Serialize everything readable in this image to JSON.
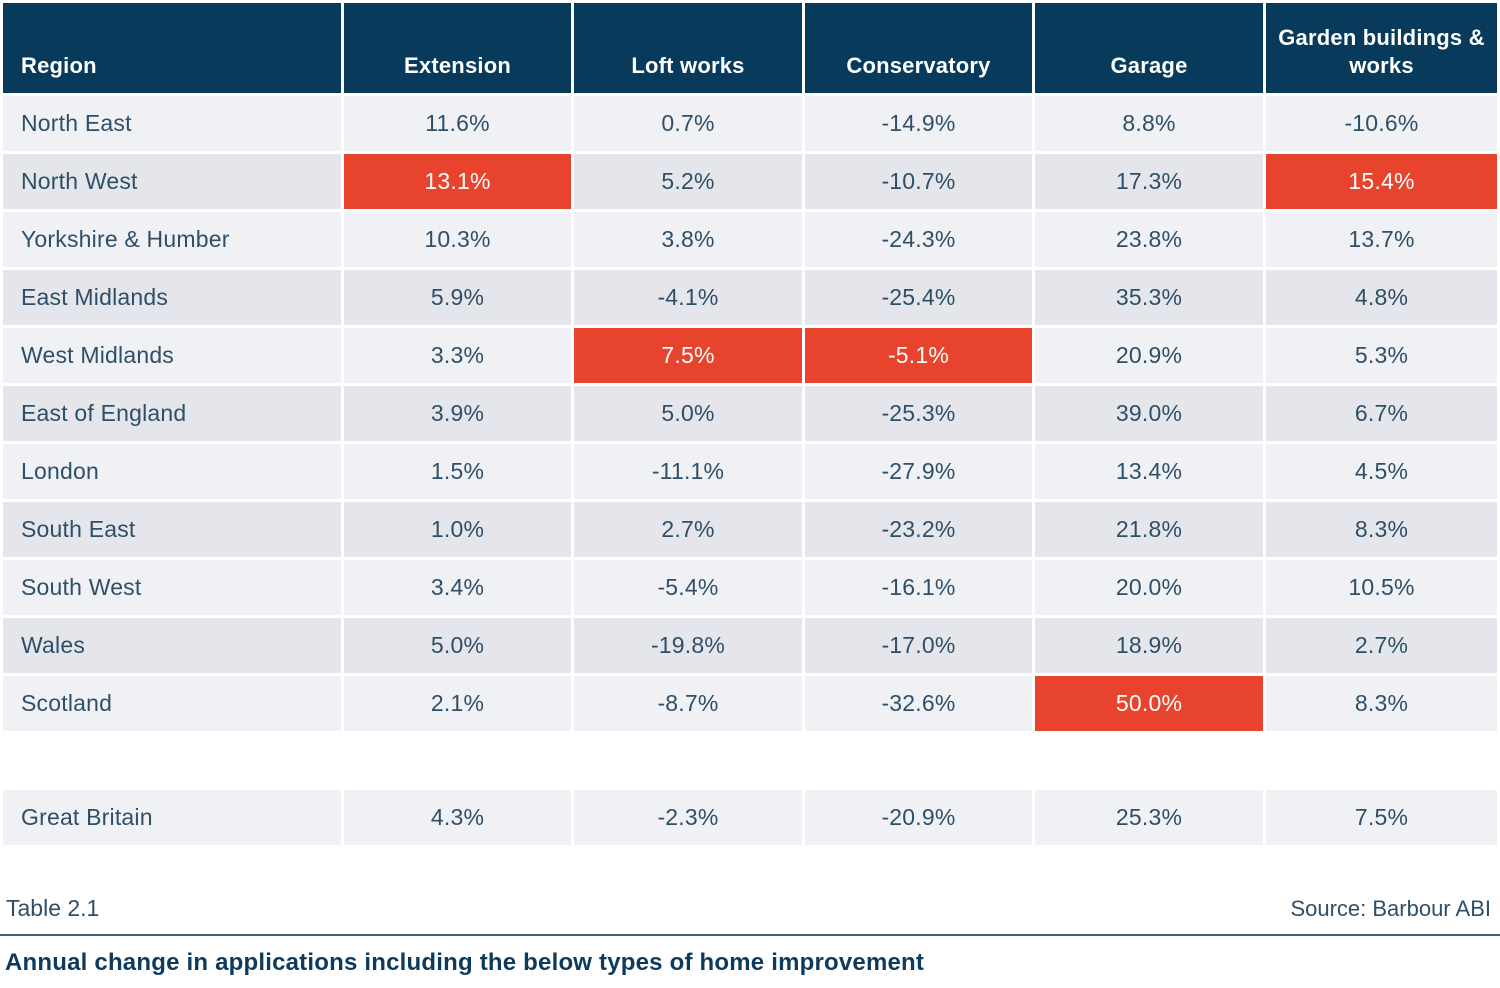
{
  "chart_data": {
    "type": "table",
    "title": "Annual change in applications including the below types of home improvement",
    "table_label": "Table 2.1",
    "source": "Source: Barbour ABI",
    "columns": [
      "Region",
      "Extension",
      "Loft works",
      "Conservatory",
      "Garage",
      "Garden buildings & works"
    ],
    "rows": [
      {
        "region": "North East",
        "values": [
          "11.6%",
          "0.7%",
          "-14.9%",
          "8.8%",
          "-10.6%"
        ],
        "highlight": []
      },
      {
        "region": "North West",
        "values": [
          "13.1%",
          "5.2%",
          "-10.7%",
          "17.3%",
          "15.4%"
        ],
        "highlight": [
          0,
          4
        ]
      },
      {
        "region": "Yorkshire & Humber",
        "values": [
          "10.3%",
          "3.8%",
          "-24.3%",
          "23.8%",
          "13.7%"
        ],
        "highlight": []
      },
      {
        "region": "East Midlands",
        "values": [
          "5.9%",
          "-4.1%",
          "-25.4%",
          "35.3%",
          "4.8%"
        ],
        "highlight": []
      },
      {
        "region": "West Midlands",
        "values": [
          "3.3%",
          "7.5%",
          "-5.1%",
          "20.9%",
          "5.3%"
        ],
        "highlight": [
          1,
          2
        ]
      },
      {
        "region": "East of England",
        "values": [
          "3.9%",
          "5.0%",
          "-25.3%",
          "39.0%",
          "6.7%"
        ],
        "highlight": []
      },
      {
        "region": "London",
        "values": [
          "1.5%",
          "-11.1%",
          "-27.9%",
          "13.4%",
          "4.5%"
        ],
        "highlight": []
      },
      {
        "region": "South East",
        "values": [
          "1.0%",
          "2.7%",
          "-23.2%",
          "21.8%",
          "8.3%"
        ],
        "highlight": []
      },
      {
        "region": "South West",
        "values": [
          "3.4%",
          "-5.4%",
          "-16.1%",
          "20.0%",
          "10.5%"
        ],
        "highlight": []
      },
      {
        "region": "Wales",
        "values": [
          "5.0%",
          "-19.8%",
          "-17.0%",
          "18.9%",
          "2.7%"
        ],
        "highlight": []
      },
      {
        "region": "Scotland",
        "values": [
          "2.1%",
          "-8.7%",
          "-32.6%",
          "50.0%",
          "8.3%"
        ],
        "highlight": [
          3
        ]
      }
    ],
    "summary_row": {
      "region": "Great Britain",
      "values": [
        "4.3%",
        "-2.3%",
        "-20.9%",
        "25.3%",
        "7.5%"
      ]
    },
    "highlighted_cells_note": [
      {
        "row": "North West",
        "column": "Extension",
        "value": "13.1%"
      },
      {
        "row": "North West",
        "column": "Garden buildings & works",
        "value": "15.4%"
      },
      {
        "row": "West Midlands",
        "column": "Loft works",
        "value": "7.5%"
      },
      {
        "row": "West Midlands",
        "column": "Conservatory",
        "value": "-5.1%"
      },
      {
        "row": "Scotland",
        "column": "Garage",
        "value": "50.0%"
      }
    ]
  },
  "colors": {
    "header_bg": "#083A5C",
    "header_text": "#FFFFFF",
    "highlight": "#E8432C",
    "highlight_text": "#FFFFFF",
    "row_light": "#F0F1F4",
    "row_dark": "#E4E6EB",
    "cell_text": "#2F4F68",
    "caption": "#0E3A5C",
    "rule": "#4A5E70"
  }
}
